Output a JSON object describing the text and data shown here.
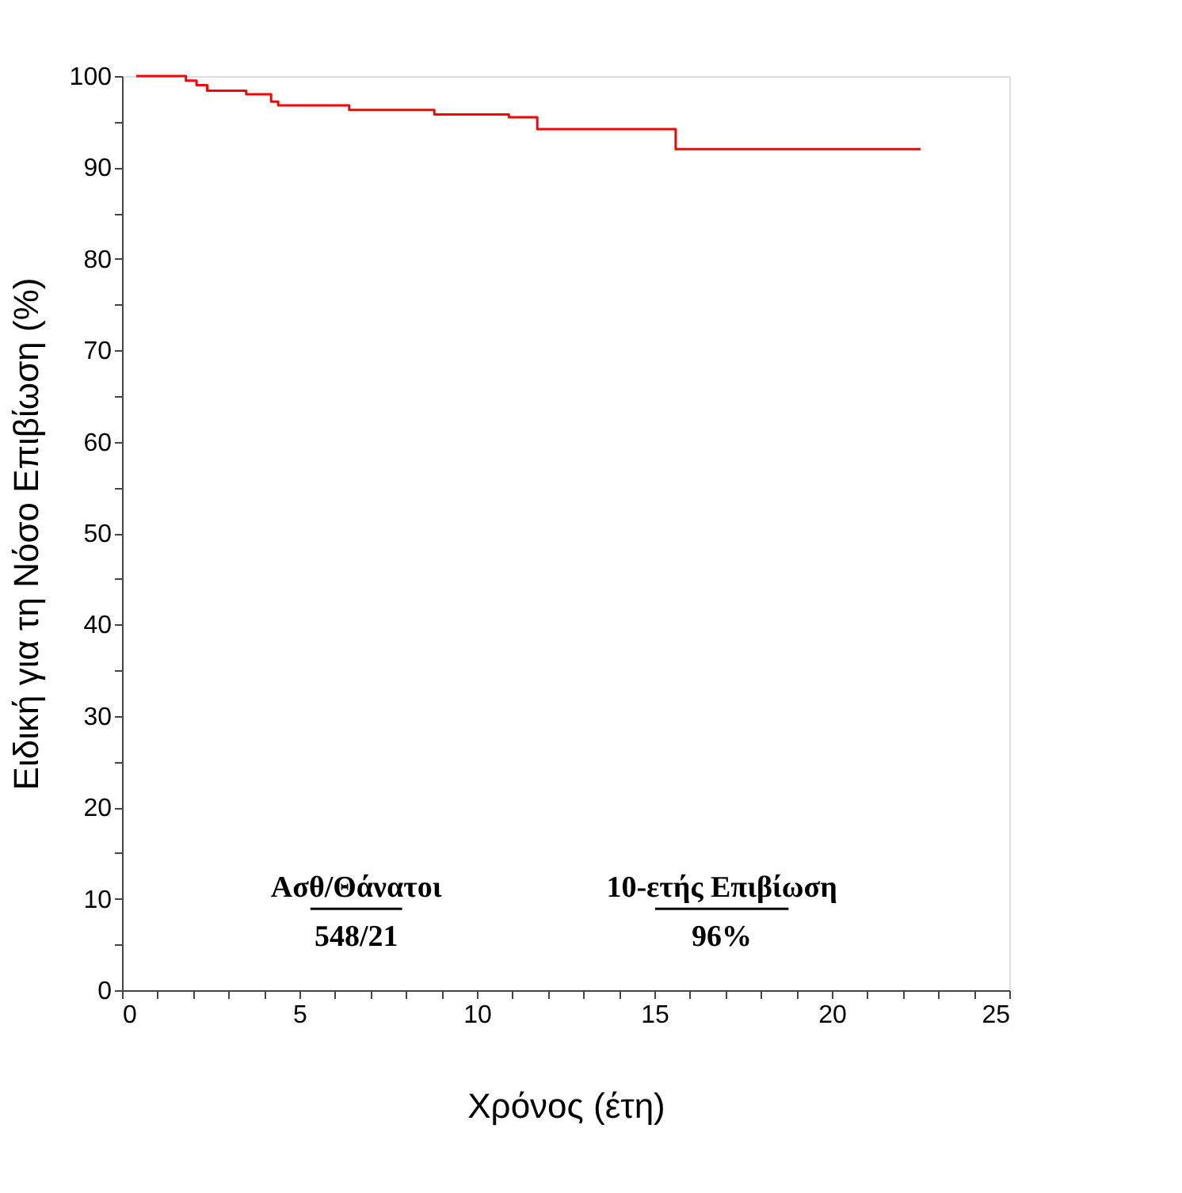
{
  "chart_data": {
    "type": "step",
    "xlabel": "Χρόνος (έτη)",
    "ylabel": "Ειδική για τη Νόσο Επιβίωση (%)",
    "x": [
      0.4,
      1.8,
      2.1,
      2.4,
      3.5,
      4.2,
      4.4,
      6.4,
      8.8,
      10.9,
      11.7,
      15.6,
      22.5
    ],
    "series": [
      {
        "color": "#ff0000",
        "values": [
          100,
          99.5,
          99,
          98.4,
          98,
          97.2,
          96.8,
          96.3,
          95.8,
          95.5,
          94.2,
          92,
          92
        ]
      }
    ],
    "xlim": [
      0,
      25
    ],
    "xticks": [
      0,
      {
        "value": 1,
        "label": null
      },
      {
        "value": 2,
        "label": null
      },
      {
        "value": 3,
        "label": null
      },
      {
        "value": 4,
        "label": null
      },
      5,
      {
        "value": 6,
        "label": null
      },
      {
        "value": 7,
        "label": null
      },
      {
        "value": 8,
        "label": null
      },
      {
        "value": 9,
        "label": null
      },
      10,
      {
        "value": 11,
        "label": null
      },
      {
        "value": 12,
        "label": null
      },
      {
        "value": 13,
        "label": null
      },
      {
        "value": 14,
        "label": null
      },
      15,
      {
        "value": 16,
        "label": null
      },
      {
        "value": 17,
        "label": null
      },
      {
        "value": 18,
        "label": null
      },
      {
        "value": 19,
        "label": null
      },
      20,
      {
        "value": 21,
        "label": null
      },
      {
        "value": 22,
        "label": null
      },
      {
        "value": 23,
        "label": null
      },
      {
        "value": 24,
        "label": null
      },
      25
    ],
    "ylim": [
      0,
      100
    ],
    "yticks": [
      0,
      {
        "value": 5,
        "label": null
      },
      10,
      {
        "value": 15,
        "label": null
      },
      20,
      {
        "value": 25,
        "label": null
      },
      30,
      {
        "value": 35,
        "label": null
      },
      40,
      {
        "value": 45,
        "label": null
      },
      50,
      {
        "value": 55,
        "label": null
      },
      60,
      {
        "value": 65,
        "label": null
      },
      70,
      {
        "value": 75,
        "label": null
      },
      80,
      {
        "value": 85,
        "label": null
      },
      90,
      {
        "value": 95,
        "label": null
      },
      100
    ],
    "annotations": [
      "Ασθ/Θάνατοι",
      "548/21",
      "10-ετής Επιβίωση",
      "96%"
    ],
    "grid": false,
    "marker": "none",
    "line_style": "solid"
  }
}
